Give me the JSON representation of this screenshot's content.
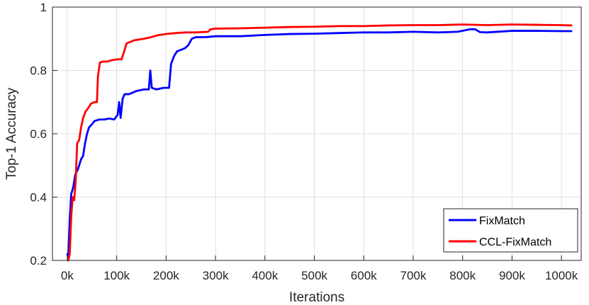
{
  "chart_data": {
    "type": "line",
    "title": "",
    "xlabel": "Iterations",
    "ylabel": "Top-1 Accuracy",
    "xlim": [
      -30000,
      1040000
    ],
    "ylim": [
      0.2,
      1.0
    ],
    "x_ticks": [
      {
        "value": 0,
        "label": "0k"
      },
      {
        "value": 100000,
        "label": "100k"
      },
      {
        "value": 200000,
        "label": "200k"
      },
      {
        "value": 300000,
        "label": "300k"
      },
      {
        "value": 400000,
        "label": "400k"
      },
      {
        "value": 500000,
        "label": "500k"
      },
      {
        "value": 600000,
        "label": "600k"
      },
      {
        "value": 700000,
        "label": "700k"
      },
      {
        "value": 800000,
        "label": "800k"
      },
      {
        "value": 900000,
        "label": "900k"
      },
      {
        "value": 1000000,
        "label": "1000k"
      }
    ],
    "y_ticks": [
      {
        "value": 0.2,
        "label": "0.2"
      },
      {
        "value": 0.4,
        "label": "0.4"
      },
      {
        "value": 0.6,
        "label": "0.6"
      },
      {
        "value": 0.8,
        "label": "0.8"
      },
      {
        "value": 1.0,
        "label": "1"
      }
    ],
    "grid": true,
    "legend_position": "bottom-right",
    "series": [
      {
        "name": "FixMatch",
        "color": "#0000ff",
        "points": [
          [
            0,
            0.22
          ],
          [
            2000,
            0.21
          ],
          [
            5000,
            0.33
          ],
          [
            8000,
            0.41
          ],
          [
            12000,
            0.43
          ],
          [
            16000,
            0.47
          ],
          [
            22000,
            0.49
          ],
          [
            28000,
            0.52
          ],
          [
            32000,
            0.53
          ],
          [
            36000,
            0.57
          ],
          [
            40000,
            0.6
          ],
          [
            44000,
            0.62
          ],
          [
            50000,
            0.63
          ],
          [
            55000,
            0.64
          ],
          [
            65000,
            0.645
          ],
          [
            75000,
            0.645
          ],
          [
            85000,
            0.648
          ],
          [
            95000,
            0.645
          ],
          [
            102000,
            0.66
          ],
          [
            105000,
            0.7
          ],
          [
            108000,
            0.65
          ],
          [
            112000,
            0.71
          ],
          [
            116000,
            0.725
          ],
          [
            125000,
            0.725
          ],
          [
            140000,
            0.735
          ],
          [
            155000,
            0.74
          ],
          [
            165000,
            0.74
          ],
          [
            168000,
            0.8
          ],
          [
            171000,
            0.745
          ],
          [
            180000,
            0.74
          ],
          [
            195000,
            0.745
          ],
          [
            206000,
            0.745
          ],
          [
            210000,
            0.82
          ],
          [
            216000,
            0.845
          ],
          [
            222000,
            0.86
          ],
          [
            230000,
            0.865
          ],
          [
            238000,
            0.87
          ],
          [
            245000,
            0.88
          ],
          [
            252000,
            0.9
          ],
          [
            260000,
            0.905
          ],
          [
            280000,
            0.905
          ],
          [
            300000,
            0.908
          ],
          [
            350000,
            0.908
          ],
          [
            400000,
            0.912
          ],
          [
            450000,
            0.915
          ],
          [
            500000,
            0.916
          ],
          [
            550000,
            0.918
          ],
          [
            600000,
            0.92
          ],
          [
            650000,
            0.92
          ],
          [
            700000,
            0.922
          ],
          [
            750000,
            0.92
          ],
          [
            790000,
            0.922
          ],
          [
            800000,
            0.925
          ],
          [
            815000,
            0.93
          ],
          [
            825000,
            0.93
          ],
          [
            835000,
            0.921
          ],
          [
            850000,
            0.92
          ],
          [
            900000,
            0.925
          ],
          [
            950000,
            0.925
          ],
          [
            1000000,
            0.924
          ],
          [
            1020000,
            0.924
          ]
        ]
      },
      {
        "name": "CCL-FixMatch",
        "color": "#ff0000",
        "points": [
          [
            2000,
            0.2
          ],
          [
            5000,
            0.22
          ],
          [
            8000,
            0.34
          ],
          [
            11000,
            0.4
          ],
          [
            14000,
            0.39
          ],
          [
            17000,
            0.45
          ],
          [
            20000,
            0.57
          ],
          [
            24000,
            0.58
          ],
          [
            28000,
            0.62
          ],
          [
            32000,
            0.65
          ],
          [
            37000,
            0.67
          ],
          [
            42000,
            0.68
          ],
          [
            48000,
            0.695
          ],
          [
            55000,
            0.7
          ],
          [
            60000,
            0.7
          ],
          [
            62000,
            0.78
          ],
          [
            66000,
            0.825
          ],
          [
            72000,
            0.828
          ],
          [
            80000,
            0.828
          ],
          [
            90000,
            0.832
          ],
          [
            100000,
            0.835
          ],
          [
            110000,
            0.835
          ],
          [
            115000,
            0.86
          ],
          [
            120000,
            0.885
          ],
          [
            135000,
            0.895
          ],
          [
            155000,
            0.9
          ],
          [
            170000,
            0.905
          ],
          [
            180000,
            0.91
          ],
          [
            200000,
            0.915
          ],
          [
            220000,
            0.918
          ],
          [
            240000,
            0.92
          ],
          [
            260000,
            0.92
          ],
          [
            285000,
            0.922
          ],
          [
            290000,
            0.93
          ],
          [
            300000,
            0.932
          ],
          [
            350000,
            0.933
          ],
          [
            400000,
            0.935
          ],
          [
            450000,
            0.937
          ],
          [
            500000,
            0.938
          ],
          [
            550000,
            0.94
          ],
          [
            600000,
            0.94
          ],
          [
            650000,
            0.942
          ],
          [
            700000,
            0.943
          ],
          [
            750000,
            0.943
          ],
          [
            800000,
            0.945
          ],
          [
            850000,
            0.943
          ],
          [
            900000,
            0.945
          ],
          [
            950000,
            0.944
          ],
          [
            1000000,
            0.943
          ],
          [
            1020000,
            0.942
          ]
        ]
      }
    ]
  }
}
